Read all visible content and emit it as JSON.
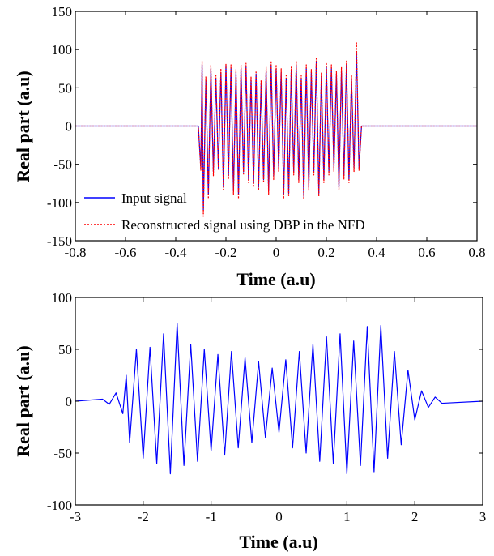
{
  "chart_data": [
    {
      "type": "line",
      "title": "",
      "xlabel": "Time (a.u)",
      "ylabel": "Real part (a.u)",
      "xlim": [
        -0.8,
        0.8
      ],
      "ylim": [
        -150,
        150
      ],
      "x_ticks": [
        "-0.8",
        "-0.6",
        "-0.4",
        "-0.2",
        "0",
        "0.2",
        "0.4",
        "0.6",
        "0.8"
      ],
      "y_ticks": [
        "-150",
        "-100",
        "-50",
        "0",
        "50",
        "100",
        "150"
      ],
      "grid": false,
      "legend_position": "bottom-left",
      "series": [
        {
          "name": "Input signal",
          "color": "#0000ff",
          "style": "solid",
          "x": [
            -0.8,
            -0.31,
            -0.3,
            -0.295,
            -0.29,
            -0.28,
            -0.27,
            -0.26,
            -0.25,
            -0.24,
            -0.23,
            -0.22,
            -0.21,
            -0.2,
            -0.19,
            -0.18,
            -0.17,
            -0.16,
            -0.15,
            -0.14,
            -0.13,
            -0.12,
            -0.11,
            -0.1,
            -0.09,
            -0.08,
            -0.07,
            -0.06,
            -0.05,
            -0.04,
            -0.03,
            -0.02,
            -0.01,
            0.0,
            0.01,
            0.02,
            0.03,
            0.04,
            0.05,
            0.06,
            0.07,
            0.08,
            0.09,
            0.1,
            0.11,
            0.12,
            0.13,
            0.14,
            0.15,
            0.16,
            0.17,
            0.18,
            0.19,
            0.2,
            0.21,
            0.22,
            0.23,
            0.24,
            0.25,
            0.26,
            0.27,
            0.28,
            0.29,
            0.3,
            0.31,
            0.32,
            0.33,
            0.34,
            0.8
          ],
          "values": [
            0,
            0,
            -55,
            80,
            -110,
            60,
            -90,
            75,
            -60,
            62,
            -55,
            70,
            -80,
            78,
            -65,
            75,
            -85,
            70,
            -90,
            75,
            -60,
            78,
            -70,
            60,
            -75,
            68,
            -80,
            55,
            -70,
            72,
            -85,
            80,
            -65,
            75,
            -55,
            70,
            -90,
            62,
            -88,
            72,
            -60,
            80,
            -70,
            62,
            -92,
            75,
            -80,
            70,
            -60,
            85,
            -88,
            65,
            -70,
            78,
            -60,
            75,
            -55,
            68,
            -80,
            72,
            -65,
            80,
            -70,
            62,
            -55,
            95,
            -55,
            0,
            0
          ]
        },
        {
          "name": "Reconstructed signal using DBP in the NFD",
          "color": "#ff0000",
          "style": "dotted",
          "x": [
            -0.8,
            -0.31,
            -0.3,
            -0.295,
            -0.29,
            -0.28,
            -0.27,
            -0.26,
            -0.25,
            -0.24,
            -0.23,
            -0.22,
            -0.21,
            -0.2,
            -0.19,
            -0.18,
            -0.17,
            -0.16,
            -0.15,
            -0.14,
            -0.13,
            -0.12,
            -0.11,
            -0.1,
            -0.09,
            -0.08,
            -0.07,
            -0.06,
            -0.05,
            -0.04,
            -0.03,
            -0.02,
            -0.01,
            0.0,
            0.01,
            0.02,
            0.03,
            0.04,
            0.05,
            0.06,
            0.07,
            0.08,
            0.09,
            0.1,
            0.11,
            0.12,
            0.13,
            0.14,
            0.15,
            0.16,
            0.17,
            0.18,
            0.19,
            0.2,
            0.21,
            0.22,
            0.23,
            0.24,
            0.25,
            0.26,
            0.27,
            0.28,
            0.29,
            0.3,
            0.31,
            0.32,
            0.33,
            0.34,
            0.8
          ],
          "values": [
            0,
            0,
            -58,
            85,
            -118,
            65,
            -95,
            80,
            -65,
            66,
            -58,
            75,
            -85,
            82,
            -70,
            80,
            -90,
            74,
            -95,
            80,
            -64,
            82,
            -74,
            65,
            -80,
            72,
            -84,
            60,
            -74,
            77,
            -90,
            85,
            -70,
            80,
            -60,
            75,
            -95,
            66,
            -92,
            77,
            -64,
            85,
            -74,
            66,
            -96,
            80,
            -84,
            74,
            -64,
            90,
            -92,
            70,
            -74,
            83,
            -64,
            80,
            -60,
            72,
            -84,
            77,
            -70,
            85,
            -74,
            66,
            -60,
            110,
            -58,
            0,
            0
          ]
        }
      ]
    },
    {
      "type": "line",
      "title": "",
      "xlabel": "Time (a.u)",
      "ylabel": "Real part (a.u)",
      "xlim": [
        -3,
        3
      ],
      "ylim": [
        -100,
        100
      ],
      "x_ticks": [
        "-3",
        "-2",
        "-1",
        "0",
        "1",
        "2",
        "3"
      ],
      "y_ticks": [
        "-100",
        "-50",
        "0",
        "50",
        "100"
      ],
      "grid": false,
      "series": [
        {
          "color": "#0000ff",
          "style": "solid",
          "x": [
            -3.0,
            -2.6,
            -2.5,
            -2.4,
            -2.3,
            -2.25,
            -2.2,
            -2.1,
            -2.0,
            -1.9,
            -1.8,
            -1.7,
            -1.6,
            -1.5,
            -1.4,
            -1.3,
            -1.2,
            -1.1,
            -1.0,
            -0.9,
            -0.8,
            -0.7,
            -0.6,
            -0.5,
            -0.4,
            -0.3,
            -0.2,
            -0.1,
            0.0,
            0.1,
            0.2,
            0.3,
            0.4,
            0.5,
            0.6,
            0.7,
            0.8,
            0.9,
            1.0,
            1.1,
            1.2,
            1.3,
            1.4,
            1.5,
            1.6,
            1.7,
            1.8,
            1.9,
            2.0,
            2.1,
            2.2,
            2.3,
            2.4,
            3.0
          ],
          "values": [
            0,
            2,
            -3,
            8,
            -12,
            25,
            -40,
            50,
            -55,
            52,
            -60,
            65,
            -70,
            75,
            -62,
            55,
            -58,
            50,
            -48,
            45,
            -52,
            48,
            -45,
            42,
            -40,
            38,
            -35,
            32,
            -30,
            40,
            -45,
            48,
            -50,
            55,
            -58,
            62,
            -60,
            65,
            -70,
            58,
            -62,
            72,
            -68,
            73,
            -55,
            48,
            -42,
            30,
            -18,
            10,
            -6,
            4,
            -2,
            0
          ]
        }
      ]
    }
  ]
}
